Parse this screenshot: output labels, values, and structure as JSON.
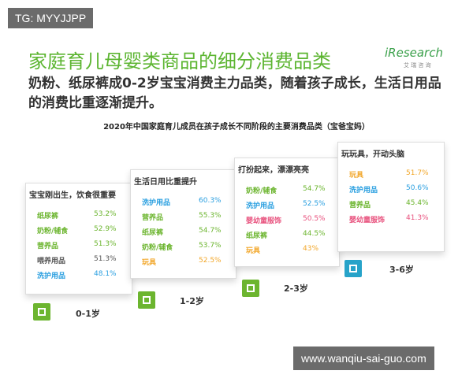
{
  "watermark_top": "TG: MYYJJPP",
  "logo": {
    "brand": "iResearch",
    "sub": "艾 瑞 咨 询"
  },
  "title": "家庭育儿母婴类商品的细分消费品类",
  "subtitle": "奶粉、纸尿裤成0-2岁宝宝消费主力品类，随着孩子成长，生活日用品的消费比重逐渐提升。",
  "chart_title": "2020年中国家庭育儿成员在孩子成长不同阶段的主要消费品类（宝爸宝妈）",
  "stages": [
    {
      "heading": "宝宝刚出生，饮食很重要",
      "label": "0-1岁",
      "items": [
        {
          "name": "纸尿裤",
          "value": "53.2%"
        },
        {
          "name": "奶粉/辅食",
          "value": "52.9%"
        },
        {
          "name": "营养品",
          "value": "51.3%"
        },
        {
          "name": "喂养用品",
          "value": "51.3%"
        },
        {
          "name": "洗护用品",
          "value": "48.1%"
        }
      ]
    },
    {
      "heading": "生活日用比重提升",
      "label": "1-2岁",
      "items": [
        {
          "name": "洗护用品",
          "value": "60.3%"
        },
        {
          "name": "营养品",
          "value": "55.3%"
        },
        {
          "name": "纸尿裤",
          "value": "54.7%"
        },
        {
          "name": "奶粉/辅食",
          "value": "53.7%"
        },
        {
          "name": "玩具",
          "value": "52.5%"
        }
      ]
    },
    {
      "heading": "打扮起来，漂漂亮亮",
      "label": "2-3岁",
      "items": [
        {
          "name": "奶粉/辅食",
          "value": "54.7%"
        },
        {
          "name": "洗护用品",
          "value": "52.5%"
        },
        {
          "name": "婴幼童服饰",
          "value": "50.5%"
        },
        {
          "name": "纸尿裤",
          "value": "44.5%"
        },
        {
          "name": "玩具",
          "value": "43%"
        }
      ]
    },
    {
      "heading": "玩玩具，开动头脑",
      "label": "3-6岁",
      "items": [
        {
          "name": "玩具",
          "value": "51.7%"
        },
        {
          "name": "洗护用品",
          "value": "50.6%"
        },
        {
          "name": "营养品",
          "value": "45.4%"
        },
        {
          "name": "婴幼童服饰",
          "value": "41.3%"
        }
      ]
    }
  ],
  "watermark_bottom": "www.wanqiu-sai-guo.com"
}
